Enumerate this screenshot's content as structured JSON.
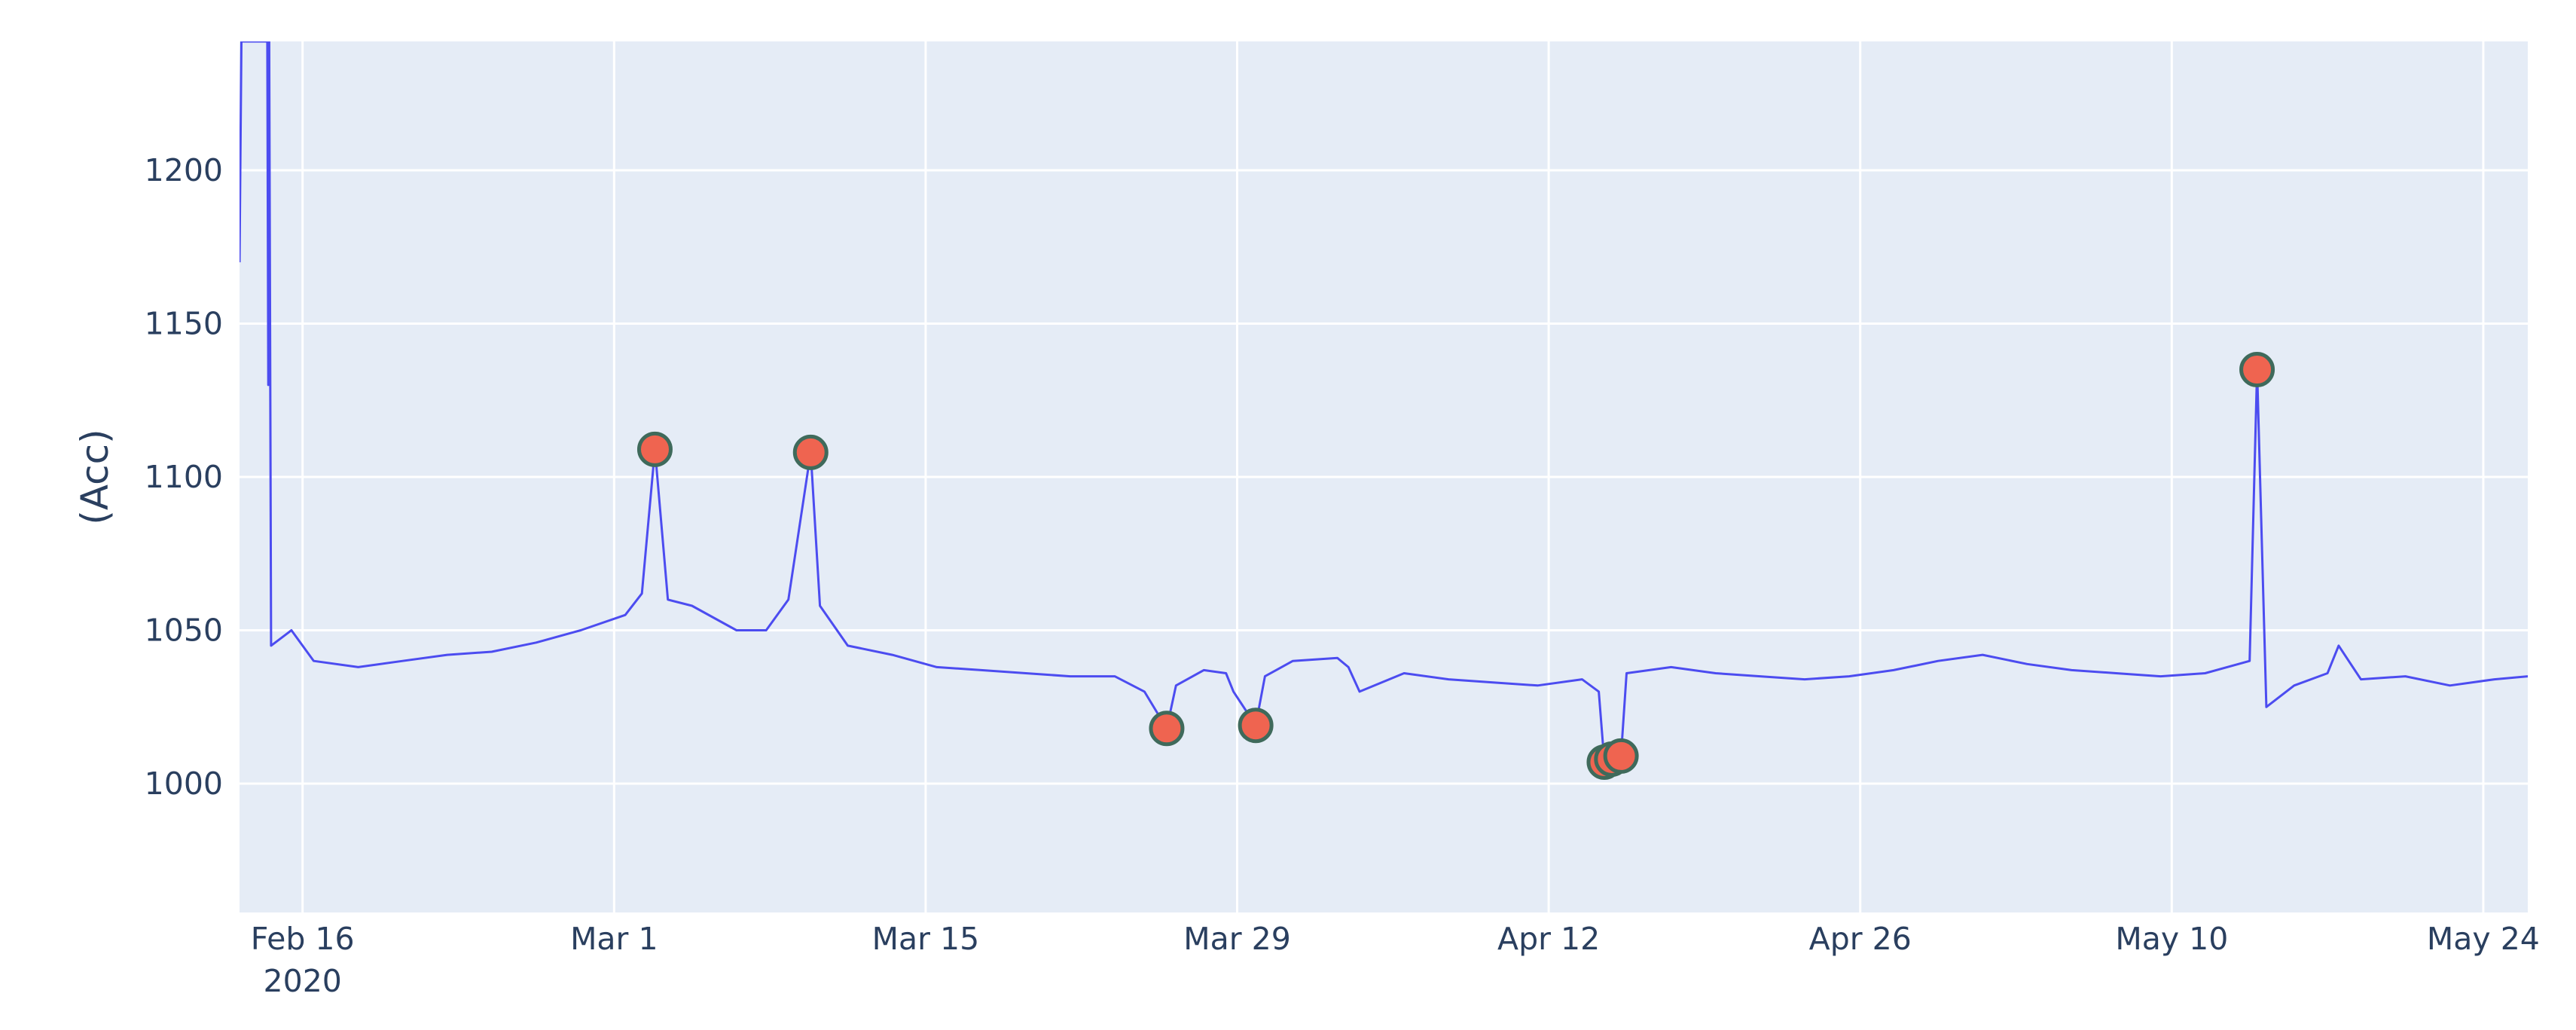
{
  "chart_data": {
    "type": "line",
    "title": "",
    "xlabel": "",
    "ylabel": "(Acc)",
    "xlim": [
      "2020-02-13T04:00",
      "2020-05-26T00:00"
    ],
    "ylim": [
      958,
      1242
    ],
    "grid": true,
    "plot_background": "#e5ecf6",
    "line_color": "#4c4cf0",
    "marker_fill": "#ef6450",
    "marker_edge": "#3f6a5b",
    "x_ticks": [
      {
        "date": "2020-02-16",
        "label": "Feb 16",
        "sublabel": "2020"
      },
      {
        "date": "2020-03-01",
        "label": "Mar 1"
      },
      {
        "date": "2020-03-15",
        "label": "Mar 15"
      },
      {
        "date": "2020-03-29",
        "label": "Mar 29"
      },
      {
        "date": "2020-04-12",
        "label": "Apr 12"
      },
      {
        "date": "2020-04-26",
        "label": "Apr 26"
      },
      {
        "date": "2020-05-10",
        "label": "May 10"
      },
      {
        "date": "2020-05-24",
        "label": "May 24"
      }
    ],
    "y_ticks": [
      {
        "value": 1000,
        "label": "1000"
      },
      {
        "value": 1050,
        "label": "1050"
      },
      {
        "value": 1100,
        "label": "1100"
      },
      {
        "value": 1150,
        "label": "1150"
      },
      {
        "value": 1200,
        "label": "1200"
      }
    ],
    "series": [
      {
        "mode": "lines",
        "points": [
          [
            "2020-02-13T04:00",
            1170
          ],
          [
            "2020-02-13T06:00",
            1242
          ],
          [
            "2020-02-14T10:00",
            1242
          ],
          [
            "2020-02-14T11:00",
            1130
          ],
          [
            "2020-02-14T12:00",
            1242
          ],
          [
            "2020-02-14T14:00",
            1045
          ],
          [
            "2020-02-15T12:00",
            1050
          ],
          [
            "2020-02-16T12:00",
            1040
          ],
          [
            "2020-02-18T12:00",
            1038
          ],
          [
            "2020-02-20T12:00",
            1040
          ],
          [
            "2020-02-22T12:00",
            1042
          ],
          [
            "2020-02-24T12:00",
            1043
          ],
          [
            "2020-02-26T12:00",
            1046
          ],
          [
            "2020-02-28T12:00",
            1050
          ],
          [
            "2020-03-01T12:00",
            1055
          ],
          [
            "2020-03-02T06:00",
            1062
          ],
          [
            "2020-03-02T20:00",
            1109
          ],
          [
            "2020-03-03T10:00",
            1060
          ],
          [
            "2020-03-04T12:00",
            1058
          ],
          [
            "2020-03-06T12:00",
            1050
          ],
          [
            "2020-03-07T20:00",
            1050
          ],
          [
            "2020-03-08T20:00",
            1060
          ],
          [
            "2020-03-09T20:00",
            1108
          ],
          [
            "2020-03-10T06:00",
            1058
          ],
          [
            "2020-03-11T12:00",
            1045
          ],
          [
            "2020-03-13T12:00",
            1042
          ],
          [
            "2020-03-15T12:00",
            1038
          ],
          [
            "2020-03-17T12:00",
            1037
          ],
          [
            "2020-03-19T12:00",
            1036
          ],
          [
            "2020-03-21T12:00",
            1035
          ],
          [
            "2020-03-23T12:00",
            1035
          ],
          [
            "2020-03-24T20:00",
            1030
          ],
          [
            "2020-03-25T20:00",
            1018
          ],
          [
            "2020-03-26T06:00",
            1032
          ],
          [
            "2020-03-27T12:00",
            1037
          ],
          [
            "2020-03-28T12:00",
            1036
          ],
          [
            "2020-03-28T20:00",
            1030
          ],
          [
            "2020-03-29T20:00",
            1019
          ],
          [
            "2020-03-30T06:00",
            1035
          ],
          [
            "2020-03-31T12:00",
            1040
          ],
          [
            "2020-04-02T12:00",
            1041
          ],
          [
            "2020-04-03T00:00",
            1038
          ],
          [
            "2020-04-03T12:00",
            1030
          ],
          [
            "2020-04-05T12:00",
            1036
          ],
          [
            "2020-04-07T12:00",
            1034
          ],
          [
            "2020-04-09T12:00",
            1033
          ],
          [
            "2020-04-11T12:00",
            1032
          ],
          [
            "2020-04-13T12:00",
            1034
          ],
          [
            "2020-04-14T06:00",
            1030
          ],
          [
            "2020-04-14T12:00",
            1007
          ],
          [
            "2020-04-14T20:00",
            1008
          ],
          [
            "2020-04-15T06:00",
            1009
          ],
          [
            "2020-04-15T12:00",
            1036
          ],
          [
            "2020-04-17T12:00",
            1038
          ],
          [
            "2020-04-19T12:00",
            1036
          ],
          [
            "2020-04-21T12:00",
            1035
          ],
          [
            "2020-04-23T12:00",
            1034
          ],
          [
            "2020-04-25T12:00",
            1035
          ],
          [
            "2020-04-27T12:00",
            1037
          ],
          [
            "2020-04-29T12:00",
            1040
          ],
          [
            "2020-05-01T12:00",
            1042
          ],
          [
            "2020-05-03T12:00",
            1039
          ],
          [
            "2020-05-05T12:00",
            1037
          ],
          [
            "2020-05-07T12:00",
            1036
          ],
          [
            "2020-05-09T12:00",
            1035
          ],
          [
            "2020-05-11T12:00",
            1036
          ],
          [
            "2020-05-13T12:00",
            1040
          ],
          [
            "2020-05-13T20:00",
            1135
          ],
          [
            "2020-05-14T06:00",
            1025
          ],
          [
            "2020-05-15T12:00",
            1032
          ],
          [
            "2020-05-17T00:00",
            1036
          ],
          [
            "2020-05-17T12:00",
            1045
          ],
          [
            "2020-05-18T12:00",
            1034
          ],
          [
            "2020-05-20T12:00",
            1035
          ],
          [
            "2020-05-22T12:00",
            1032
          ],
          [
            "2020-05-24T12:00",
            1034
          ],
          [
            "2020-05-26T00:00",
            1035
          ]
        ]
      },
      {
        "mode": "markers",
        "points": [
          [
            "2020-03-02T20:00",
            1109
          ],
          [
            "2020-03-09T20:00",
            1108
          ],
          [
            "2020-03-25T20:00",
            1018
          ],
          [
            "2020-03-29T20:00",
            1019
          ],
          [
            "2020-04-14T12:00",
            1007
          ],
          [
            "2020-04-14T20:00",
            1008
          ],
          [
            "2020-04-15T06:00",
            1009
          ],
          [
            "2020-05-13T20:00",
            1135
          ]
        ]
      }
    ]
  }
}
